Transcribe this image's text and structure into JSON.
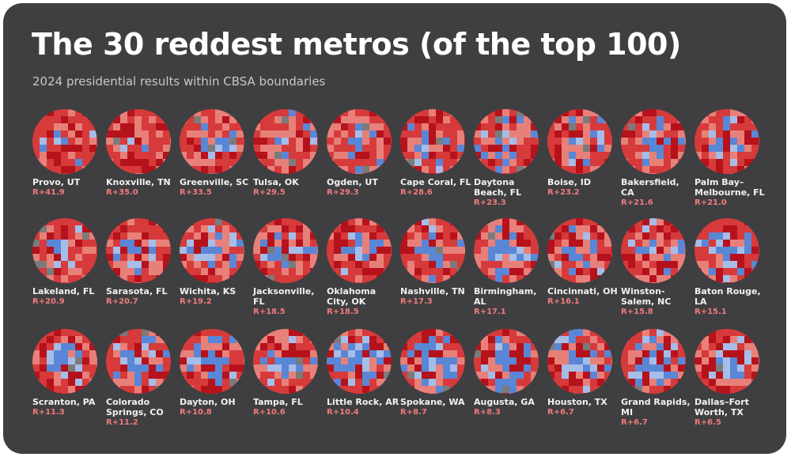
{
  "title": "The 30 reddest metros (of the top 100)",
  "subtitle": "2024 presidential results within CBSA boundaries",
  "colors": {
    "background": "#3f3f41",
    "red_dark": "#b5121b",
    "red": "#d63a3a",
    "red_light": "#e8807a",
    "blue": "#5a86d6",
    "blue_light": "#a6bde8",
    "gray": "#7b7b7b",
    "margin_text": "#f07a7a"
  },
  "metros": [
    {
      "name": "Provo, UT",
      "margin": "R+41.9"
    },
    {
      "name": "Knoxville, TN",
      "margin": "R+35.0"
    },
    {
      "name": "Greenville, SC",
      "margin": "R+33.5"
    },
    {
      "name": "Tulsa, OK",
      "margin": "R+29.5"
    },
    {
      "name": "Ogden, UT",
      "margin": "R+29.3"
    },
    {
      "name": "Cape Coral, FL",
      "margin": "R+28.6"
    },
    {
      "name": "Daytona Beach, FL",
      "margin": "R+23.3"
    },
    {
      "name": "Boise, ID",
      "margin": "R+23.2"
    },
    {
      "name": "Bakersfield, CA",
      "margin": "R+21.6"
    },
    {
      "name": "Palm Bay–Melbourne, FL",
      "margin": "R+21.0"
    },
    {
      "name": "Lakeland, FL",
      "margin": "R+20.9"
    },
    {
      "name": "Sarasota, FL",
      "margin": "R+20.7"
    },
    {
      "name": "Wichita, KS",
      "margin": "R+19.2"
    },
    {
      "name": "Jacksonville, FL",
      "margin": "R+18.5"
    },
    {
      "name": "Oklahoma City, OK",
      "margin": "R+18.5"
    },
    {
      "name": "Nashville, TN",
      "margin": "R+17.3"
    },
    {
      "name": "Birmingham, AL",
      "margin": "R+17.1"
    },
    {
      "name": "Cincinnati, OH",
      "margin": "R+16.1"
    },
    {
      "name": "Winston-Salem, NC",
      "margin": "R+15.8"
    },
    {
      "name": "Baton Rouge, LA",
      "margin": "R+15.1"
    },
    {
      "name": "Scranton, PA",
      "margin": "R+11.3"
    },
    {
      "name": "Colorado Springs, CO",
      "margin": "R+11.2"
    },
    {
      "name": "Dayton, OH",
      "margin": "R+10.8"
    },
    {
      "name": "Tampa, FL",
      "margin": "R+10.6"
    },
    {
      "name": "Little Rock, AR",
      "margin": "R+10.4"
    },
    {
      "name": "Spokane, WA",
      "margin": "R+8.7"
    },
    {
      "name": "Augusta, GA",
      "margin": "R+8.3"
    },
    {
      "name": "Houston, TX",
      "margin": "R+6.7"
    },
    {
      "name": "Grand Rapids, MI",
      "margin": "R+6.7"
    },
    {
      "name": "Dallas–Fort Worth, TX",
      "margin": "R+6.5"
    }
  ]
}
